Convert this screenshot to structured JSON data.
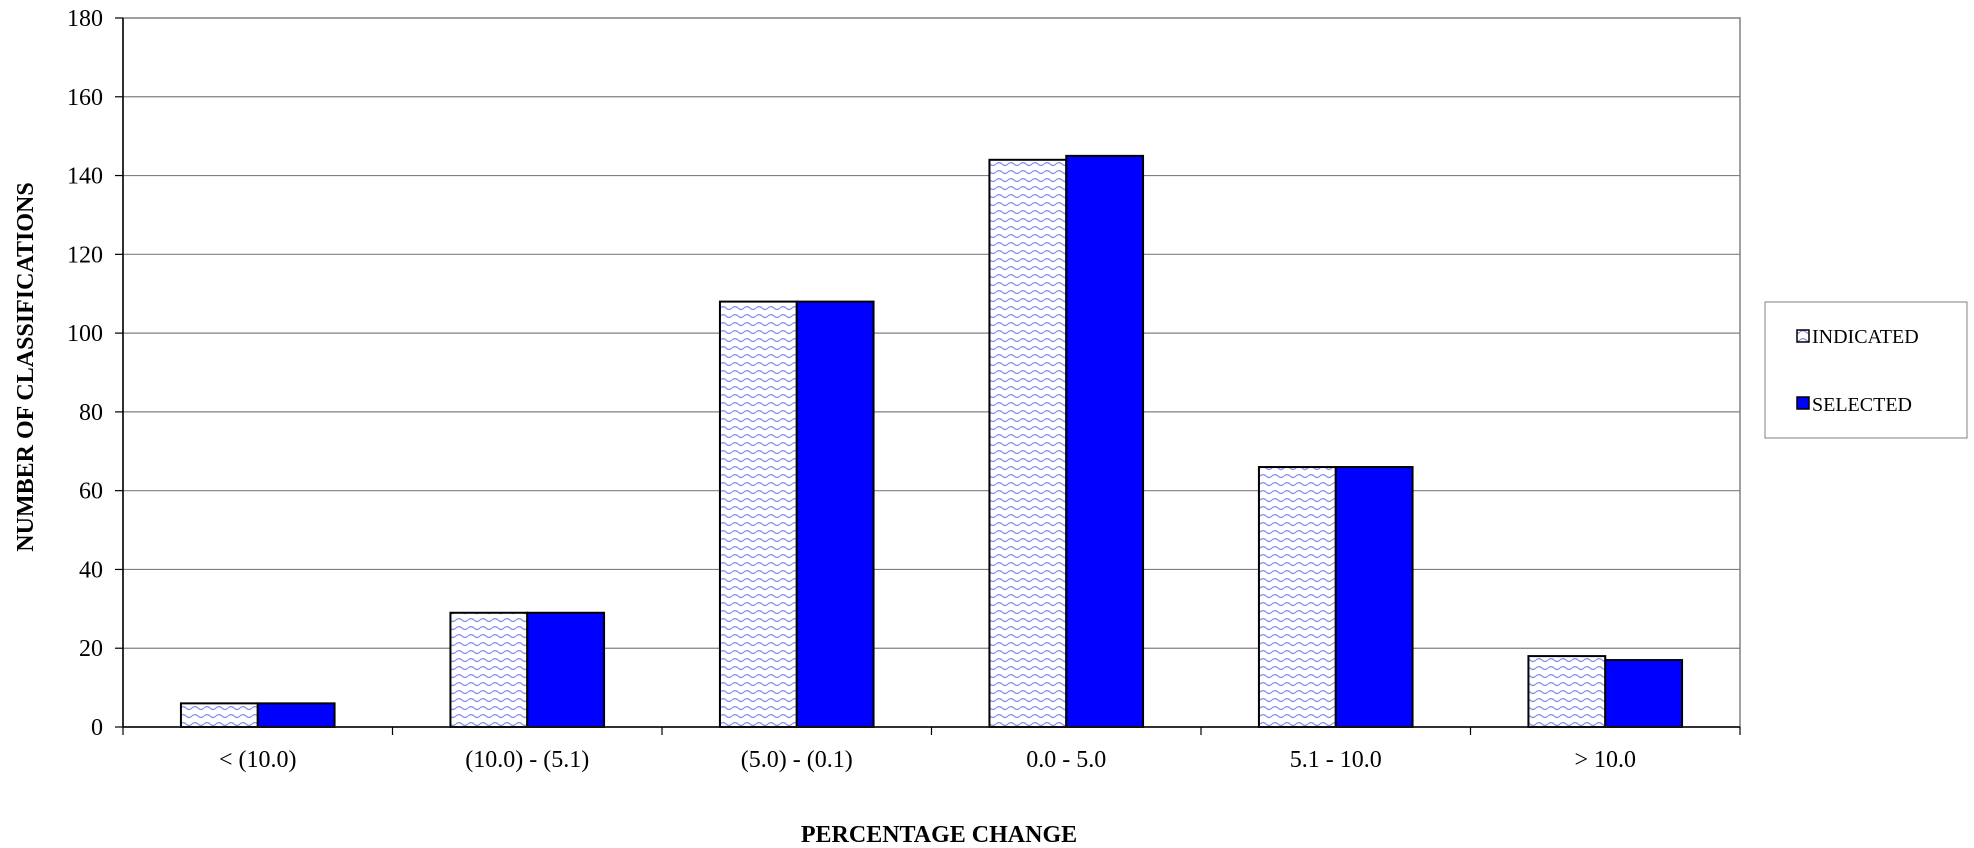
{
  "chart_data": {
    "type": "bar",
    "xlabel": "PERCENTAGE CHANGE",
    "ylabel": "NUMBER OF CLASSIFICATIONS",
    "categories": [
      "< (10.0)",
      "(10.0) - (5.1)",
      "(5.0) - (0.1)",
      "0.0 - 5.0",
      "5.1 - 10.0",
      "> 10.0"
    ],
    "series": [
      {
        "name": "INDICATED",
        "values": [
          6,
          29,
          108,
          144,
          66,
          18
        ],
        "color": "#c9cdf3",
        "pattern": "wave"
      },
      {
        "name": "SELECTED",
        "values": [
          6,
          29,
          108,
          145,
          66,
          17
        ],
        "color": "#0000ff"
      }
    ],
    "ylim": [
      0,
      180
    ],
    "yticks": [
      0,
      20,
      40,
      60,
      80,
      100,
      120,
      140,
      160,
      180
    ],
    "grid": true,
    "legend_position": "right"
  }
}
